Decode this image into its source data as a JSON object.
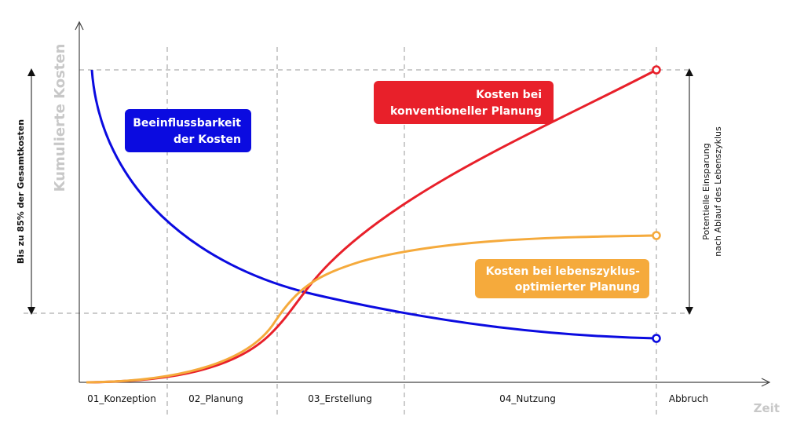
{
  "axes": {
    "y_label": "Kumulierte Kosten",
    "x_label": "Zeit"
  },
  "phases": [
    "01_Konzeption",
    "02_Planung",
    "03_Erstellung",
    "04_Nutzung",
    "Abbruch"
  ],
  "annotations": {
    "left": "Bis zu 85% der Gesamtkosten",
    "right_line1": "Potentielle Einsparung",
    "right_line2": "nach Ablauf des Lebenszyklus"
  },
  "labels": {
    "blue_line1": "Beeinflussbarkeit",
    "blue_line2": "der Kosten",
    "red_line1": "Kosten bei",
    "red_line2": "konventioneller Planung",
    "orange_line1": "Kosten bei lebenszyklus-",
    "orange_line2": "optimierter Planung"
  },
  "colors": {
    "blue": "#0b0be0",
    "red": "#e8202a",
    "orange": "#f5aa3c",
    "axis_label": "#c8c8c8"
  }
}
